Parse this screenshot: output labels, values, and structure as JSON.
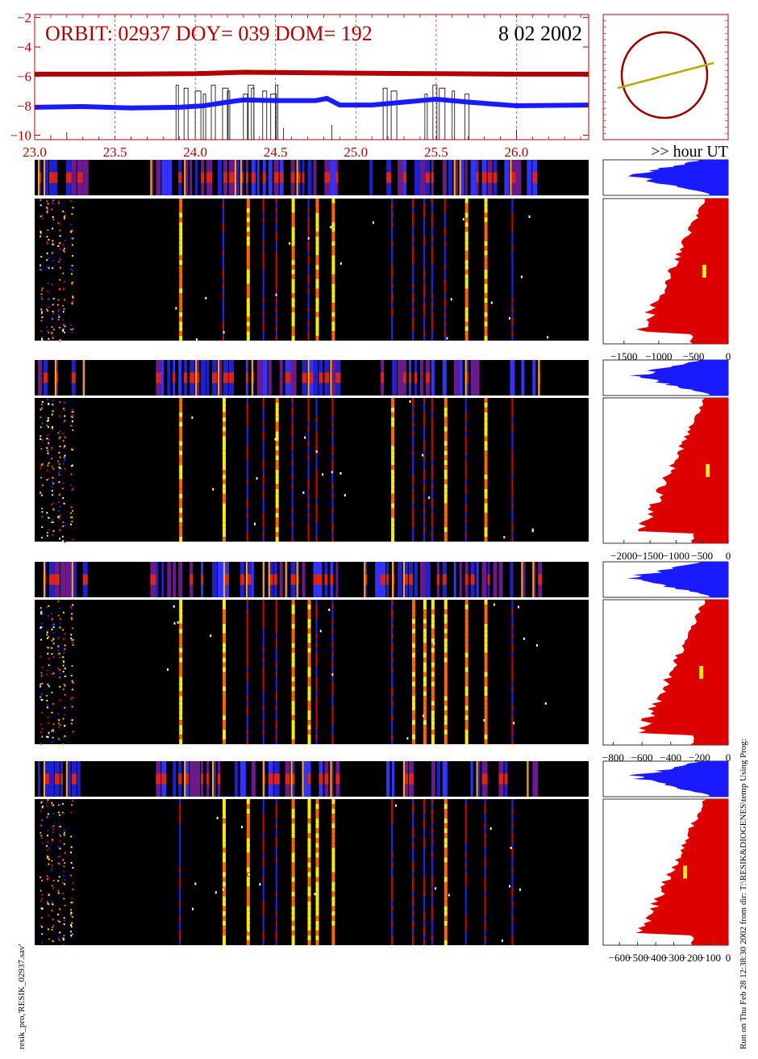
{
  "header": {
    "orbit_text": "ORBIT: 02937 DOY=  039 DOM=  192",
    "date_text": "8 02 2002",
    "x_unit_label": ">> hour UT"
  },
  "colors": {
    "accent_red": "#b30000",
    "series_red": "#b30000",
    "series_blue": "#1a1aff",
    "histogram_red": "#dd0000",
    "histogram_blue": "#1a1aff",
    "marker_yellow": "#ffee22",
    "orbit_circle": "#990000",
    "orbit_line": "#bbaa00"
  },
  "side_text": {
    "left_vertical": "resik_pro,'RESIK_02937.sav'",
    "right_vertical": "Run on Thu Feb 28 12:38:30 2002  from dir: T:\\RESIK&DIOGENES\\temp Using Prog:"
  },
  "chart_data": [
    {
      "type": "line",
      "x_ticks": [
        "23.0",
        "23.5",
        "24.0",
        "24.5",
        "25.0",
        "25.5",
        "26.0"
      ],
      "y_ticks": [
        "−10",
        "−8",
        "−6",
        "−4",
        "−2"
      ],
      "xlim": [
        23.0,
        26.45
      ],
      "ylim": [
        -10.3,
        -1.8
      ],
      "grid": "vertical dashed at x ticks",
      "series": [
        {
          "color": "red",
          "x": [
            23.0,
            23.5,
            24.0,
            24.3,
            24.6,
            25.0,
            25.5,
            26.0,
            26.45
          ],
          "y": [
            -5.85,
            -5.85,
            -5.82,
            -5.72,
            -5.75,
            -5.78,
            -5.82,
            -5.85,
            -5.85
          ]
        },
        {
          "color": "blue",
          "x": [
            23.0,
            23.3,
            23.6,
            23.9,
            24.05,
            24.2,
            24.3,
            24.5,
            24.75,
            24.82,
            24.9,
            25.1,
            25.3,
            25.5,
            25.7,
            26.0,
            26.45
          ],
          "y": [
            -8.1,
            -8.05,
            -8.15,
            -8.1,
            -8.0,
            -7.75,
            -7.6,
            -7.65,
            -7.65,
            -7.5,
            -7.95,
            -7.95,
            -7.75,
            -7.55,
            -7.75,
            -8.0,
            -7.95
          ]
        }
      ]
    },
    {
      "type": "line",
      "title": "orbit track",
      "circle": true,
      "track": [
        [
          -0.2,
          0.05
        ],
        [
          0.95,
          0.4
        ]
      ]
    },
    {
      "type": "heatmap",
      "panels": 4,
      "xlim": [
        23.0,
        26.45
      ],
      "bright_hours": [
        23.03,
        23.07,
        23.1,
        23.17,
        23.22,
        23.9,
        24.17,
        24.32,
        24.42,
        24.5,
        24.6,
        24.7,
        24.75,
        24.85,
        25.22,
        25.35,
        25.42,
        25.47,
        25.55,
        25.68,
        25.8,
        25.97
      ]
    },
    {
      "type": "area",
      "histograms": [
        {
          "x_ticks": [
            "−1500",
            "−1000",
            "−500",
            "0"
          ],
          "xlim": [
            -1800,
            0
          ],
          "marker_value": -350
        },
        {
          "x_ticks": [
            "−2000",
            "−1500",
            "−1000",
            "−500",
            "0"
          ],
          "xlim": [
            -2400,
            0
          ],
          "marker_value": -400
        },
        {
          "x_ticks": [
            "−800",
            "−600",
            "−400",
            "−200",
            "0"
          ],
          "xlim": [
            -870,
            0
          ],
          "marker_value": -190
        },
        {
          "x_ticks": [
            "−600",
            "−500",
            "−400",
            "−300",
            "−200",
            "−100",
            "0"
          ],
          "xlim": [
            -690,
            0
          ],
          "marker_value": -240
        }
      ]
    }
  ]
}
